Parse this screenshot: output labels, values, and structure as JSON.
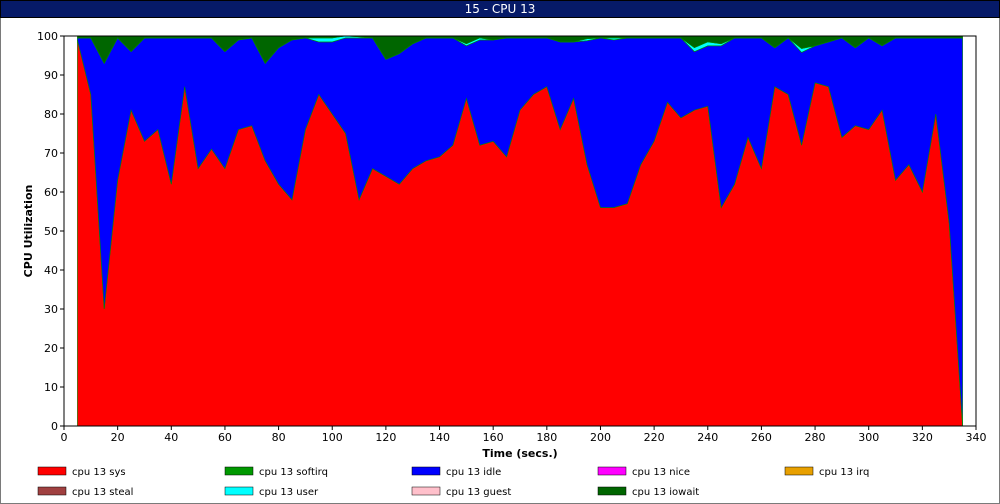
{
  "window": {
    "title": "15 - CPU 13"
  },
  "chart_data": {
    "type": "area",
    "title": "15 - CPU 13",
    "xlabel": "Time (secs.)",
    "ylabel": "CPU Utilization",
    "xlim": [
      0,
      340
    ],
    "ylim": [
      0,
      100
    ],
    "xticks": [
      0,
      20,
      40,
      60,
      80,
      100,
      120,
      140,
      160,
      180,
      200,
      220,
      240,
      260,
      280,
      300,
      320,
      340
    ],
    "yticks": [
      0,
      10,
      20,
      30,
      40,
      50,
      60,
      70,
      80,
      90,
      100
    ],
    "stacked": true,
    "grid": false,
    "legend_position": "bottom",
    "x": [
      5,
      10,
      15,
      20,
      25,
      30,
      35,
      40,
      45,
      50,
      55,
      60,
      65,
      70,
      75,
      80,
      85,
      90,
      95,
      100,
      105,
      110,
      115,
      120,
      125,
      130,
      135,
      140,
      145,
      150,
      155,
      160,
      165,
      170,
      175,
      180,
      185,
      190,
      195,
      200,
      205,
      210,
      215,
      220,
      225,
      230,
      235,
      240,
      245,
      250,
      255,
      260,
      265,
      270,
      275,
      280,
      285,
      290,
      295,
      300,
      305,
      310,
      315,
      320,
      325,
      330,
      335
    ],
    "series": [
      {
        "name": "cpu 13 sys",
        "color": "#ff0000",
        "values": [
          99,
          85,
          30,
          63,
          81,
          73,
          76,
          62,
          87,
          66,
          71,
          66,
          76,
          77,
          68,
          62,
          58,
          76,
          85,
          80,
          75,
          58,
          66,
          64,
          62,
          66,
          68,
          69,
          72,
          84,
          72,
          73,
          69,
          81,
          85,
          87,
          76,
          84,
          67,
          56,
          56,
          57,
          67,
          73,
          83,
          79,
          81,
          82,
          56,
          62,
          74,
          66,
          87,
          85,
          72,
          88,
          87,
          74,
          77,
          76,
          81,
          63,
          67,
          60,
          80,
          52,
          0
        ]
      },
      {
        "name": "cpu 13 softirq",
        "color": "#009900",
        "values": [
          0,
          0,
          0,
          0,
          0,
          0,
          0,
          0,
          0,
          0,
          0,
          0,
          0,
          0,
          0,
          0,
          0,
          0,
          0,
          0,
          0,
          0,
          0,
          0,
          0,
          0,
          0,
          0,
          0,
          0,
          0,
          0,
          0,
          0,
          0,
          0,
          0,
          0,
          0,
          0,
          0,
          0,
          0,
          0,
          0,
          0,
          0,
          0,
          0,
          0,
          0,
          0,
          0,
          0,
          0,
          0,
          0,
          0,
          0,
          0,
          0,
          0,
          0,
          0,
          0,
          0,
          0
        ]
      },
      {
        "name": "cpu 13 idle",
        "color": "#0000ff",
        "values": [
          0.5,
          14.5,
          63,
          36.5,
          15,
          26.5,
          23.5,
          37.5,
          12.5,
          33.5,
          28.5,
          30,
          23,
          22.5,
          25,
          35,
          41,
          23.5,
          13.5,
          18.5,
          24.5,
          41.5,
          33.5,
          30,
          33.5,
          32,
          31.5,
          30.5,
          27.5,
          13.5,
          27,
          26,
          30.5,
          18.5,
          14.5,
          12.5,
          22.5,
          14.5,
          31.8,
          43.5,
          43,
          42.5,
          32.5,
          26.5,
          16.5,
          20.5,
          15,
          15.5,
          41.5,
          37.5,
          25.5,
          33.5,
          10,
          14.5,
          23.8,
          9.5,
          11.5,
          25.5,
          20,
          23.5,
          16.5,
          36.5,
          32.5,
          39.5,
          19.5,
          47.5,
          99.5
        ]
      },
      {
        "name": "cpu 13 nice",
        "color": "#ff00ff",
        "values": [
          0,
          0,
          0,
          0,
          0,
          0,
          0,
          0,
          0,
          0,
          0,
          0,
          0,
          0,
          0,
          0,
          0,
          0,
          0,
          0,
          0,
          0,
          0,
          0,
          0,
          0,
          0,
          0,
          0,
          0,
          0,
          0,
          0,
          0,
          0,
          0,
          0,
          0,
          0,
          0,
          0,
          0,
          0,
          0,
          0,
          0,
          0,
          0,
          0,
          0,
          0,
          0,
          0,
          0,
          0,
          0,
          0,
          0,
          0,
          0,
          0,
          0,
          0,
          0,
          0,
          0,
          0
        ]
      },
      {
        "name": "cpu 13 irq",
        "color": "#e8a000",
        "values": [
          0,
          0,
          0,
          0,
          0,
          0,
          0,
          0,
          0,
          0,
          0,
          0,
          0,
          0,
          0,
          0,
          0,
          0,
          0,
          0,
          0,
          0,
          0,
          0,
          0,
          0,
          0,
          0,
          0,
          0,
          0,
          0,
          0,
          0,
          0,
          0,
          0,
          0,
          0,
          0,
          0,
          0,
          0,
          0,
          0,
          0,
          0,
          0,
          0,
          0,
          0,
          0,
          0,
          0,
          0,
          0,
          0,
          0,
          0,
          0,
          0,
          0,
          0,
          0,
          0,
          0,
          0
        ]
      },
      {
        "name": "cpu 13 steal",
        "color": "#a04040",
        "values": [
          0,
          0,
          0,
          0,
          0,
          0,
          0,
          0,
          0,
          0,
          0,
          0,
          0,
          0,
          0,
          0,
          0,
          0,
          0,
          0,
          0,
          0,
          0,
          0,
          0,
          0,
          0,
          0,
          0,
          0,
          0,
          0,
          0,
          0,
          0,
          0,
          0,
          0,
          0,
          0,
          0,
          0,
          0,
          0,
          0,
          0,
          0,
          0,
          0,
          0,
          0,
          0,
          0,
          0,
          0,
          0,
          0,
          0,
          0,
          0,
          0,
          0,
          0,
          0,
          0,
          0,
          0
        ]
      },
      {
        "name": "cpu 13 user",
        "color": "#00ffff",
        "values": [
          0,
          0,
          0,
          0,
          0,
          0,
          0,
          0,
          0,
          0,
          0,
          0,
          0,
          0,
          0,
          0,
          0,
          0,
          1,
          1,
          0.5,
          0.3,
          0,
          0,
          0,
          0,
          0,
          0,
          0,
          0.5,
          0.5,
          0,
          0,
          0,
          0,
          0,
          0,
          0,
          0.5,
          0,
          0.5,
          0,
          0,
          0,
          0,
          0,
          1,
          1,
          0.5,
          0,
          0,
          0,
          0,
          0,
          1,
          0,
          0,
          0,
          0,
          0,
          0,
          0,
          0,
          0,
          0,
          0,
          0
        ]
      },
      {
        "name": "cpu 13 guest",
        "color": "#ffc0cb",
        "values": [
          0,
          0,
          0,
          0,
          0,
          0,
          0,
          0,
          0,
          0,
          0,
          0,
          0,
          0,
          0,
          0,
          0,
          0,
          0,
          0,
          0,
          0,
          0,
          0,
          0,
          0,
          0,
          0,
          0,
          0,
          0,
          0,
          0,
          0,
          0,
          0,
          0,
          0,
          0,
          0,
          0,
          0,
          0,
          0,
          0,
          0,
          0,
          0,
          0,
          0,
          0,
          0,
          0,
          0,
          0,
          0,
          0,
          0,
          0,
          0,
          0,
          0,
          0,
          0,
          0,
          0,
          0
        ]
      },
      {
        "name": "cpu 13 iowait",
        "color": "#006600",
        "values": [
          0.5,
          0.5,
          7,
          0.5,
          4,
          0.5,
          0.5,
          0.5,
          0.5,
          0.5,
          0.5,
          4,
          1,
          0.5,
          7,
          3,
          1,
          0.5,
          0.5,
          0.5,
          0,
          0.2,
          0.5,
          6,
          4.5,
          2,
          0.5,
          0.5,
          0.5,
          2,
          0.5,
          1,
          0.5,
          0.5,
          0.5,
          0.5,
          1.5,
          1.5,
          0.7,
          0.5,
          0.5,
          0.5,
          0.5,
          0.5,
          0.5,
          0.5,
          3,
          1.5,
          2,
          0.5,
          0.5,
          0.5,
          3,
          0.5,
          3.2,
          2.5,
          1.5,
          0.5,
          3,
          0.5,
          2.5,
          0.5,
          0.5,
          0.5,
          0.5,
          0.5,
          0.5
        ]
      }
    ]
  }
}
